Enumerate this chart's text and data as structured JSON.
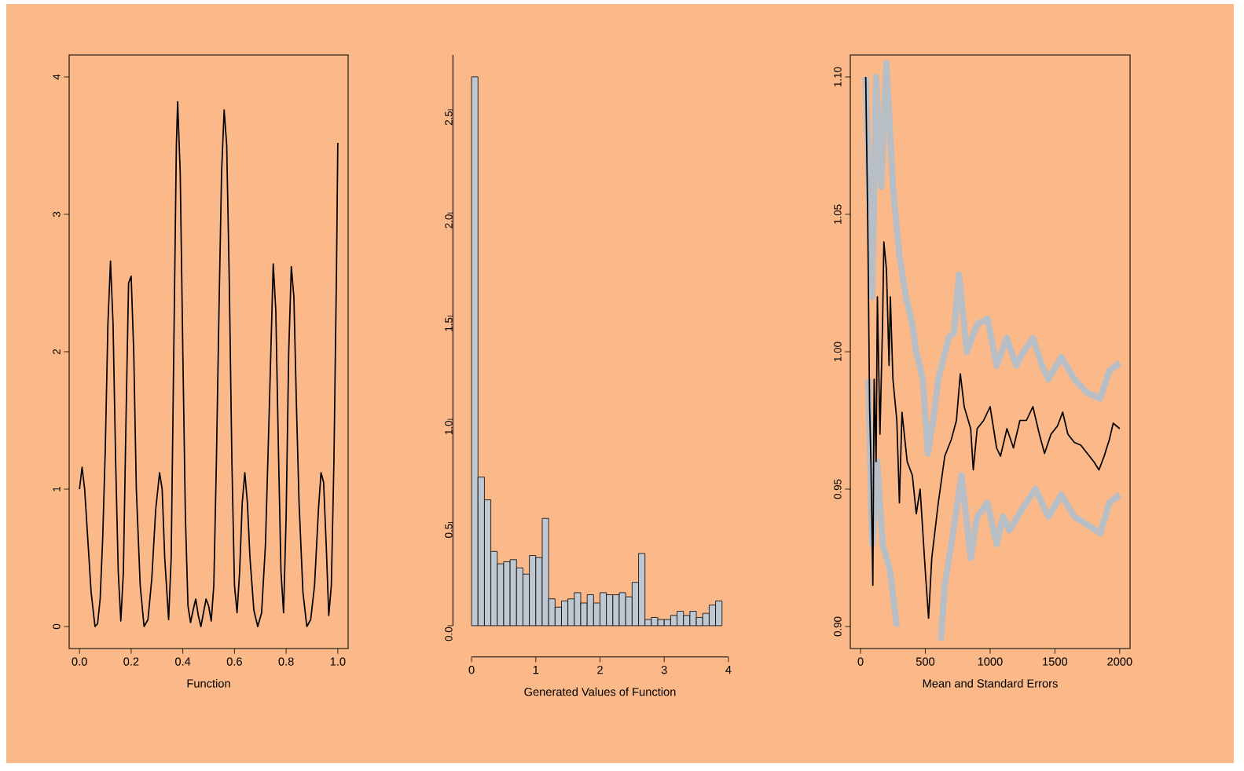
{
  "chart_data": [
    {
      "type": "line",
      "xlabel": "Function",
      "xlim": [
        -0.04,
        1.04
      ],
      "ylim": [
        -0.16,
        4.16
      ],
      "xticks": [
        {
          "value": 0,
          "label": "0.0"
        },
        {
          "value": 0.2,
          "label": "0.2"
        },
        {
          "value": 0.4,
          "label": "0.4"
        },
        {
          "value": 0.6,
          "label": "0.6"
        },
        {
          "value": 0.8,
          "label": "0.8"
        },
        {
          "value": 1,
          "label": "1.0"
        }
      ],
      "yticks": [
        0,
        1,
        2,
        3,
        4
      ],
      "series": [
        {
          "color": "#000000",
          "x": [
            0,
            0.01,
            0.02,
            0.03,
            0.045,
            0.06,
            0.07,
            0.08,
            0.09,
            0.1,
            0.11,
            0.12,
            0.13,
            0.14,
            0.15,
            0.16,
            0.17,
            0.18,
            0.19,
            0.2,
            0.21,
            0.22,
            0.235,
            0.25,
            0.265,
            0.28,
            0.295,
            0.31,
            0.32,
            0.33,
            0.345,
            0.355,
            0.365,
            0.375,
            0.38,
            0.39,
            0.4,
            0.41,
            0.42,
            0.43,
            0.44,
            0.45,
            0.46,
            0.47,
            0.48,
            0.49,
            0.5,
            0.51,
            0.52,
            0.53,
            0.54,
            0.55,
            0.56,
            0.57,
            0.58,
            0.59,
            0.6,
            0.61,
            0.62,
            0.63,
            0.64,
            0.65,
            0.66,
            0.675,
            0.69,
            0.705,
            0.72,
            0.735,
            0.75,
            0.76,
            0.77,
            0.78,
            0.79,
            0.8,
            0.81,
            0.82,
            0.83,
            0.84,
            0.85,
            0.865,
            0.88,
            0.895,
            0.91,
            0.925,
            0.935,
            0.945,
            0.955,
            0.965,
            0.975,
            0.985,
            0.995,
            1.0
          ],
          "values": [
            1.0,
            1.16,
            1.0,
            0.7,
            0.25,
            0.0,
            0.02,
            0.2,
            0.65,
            1.3,
            2.2,
            2.66,
            2.2,
            1.2,
            0.4,
            0.04,
            0.4,
            1.5,
            2.5,
            2.55,
            2.0,
            1.0,
            0.3,
            0.0,
            0.05,
            0.35,
            0.85,
            1.12,
            1.0,
            0.5,
            0.05,
            0.5,
            2.0,
            3.5,
            3.82,
            3.3,
            2.0,
            0.8,
            0.15,
            0.03,
            0.12,
            0.2,
            0.08,
            0.0,
            0.1,
            0.2,
            0.15,
            0.04,
            0.3,
            1.2,
            2.3,
            3.3,
            3.76,
            3.5,
            2.5,
            1.2,
            0.3,
            0.1,
            0.4,
            0.9,
            1.12,
            0.9,
            0.5,
            0.12,
            0.0,
            0.1,
            0.6,
            1.6,
            2.64,
            2.3,
            1.3,
            0.4,
            0.1,
            0.8,
            2.0,
            2.62,
            2.4,
            1.6,
            0.9,
            0.25,
            0.0,
            0.05,
            0.3,
            0.85,
            1.12,
            1.05,
            0.6,
            0.08,
            0.3,
            1.2,
            2.6,
            3.52
          ]
        }
      ]
    },
    {
      "type": "histogram",
      "xlabel": "Generated Values of Function",
      "xlim": [
        0,
        4
      ],
      "ylim": [
        0,
        2.766
      ],
      "color": "#bfc8d2",
      "xticks": [
        0,
        1,
        2,
        3,
        4
      ],
      "yticks": [
        {
          "value": 0,
          "label": "0.0"
        },
        {
          "value": 0.5,
          "label": "0.5"
        },
        {
          "value": 1,
          "label": "1.0"
        },
        {
          "value": 1.5,
          "label": "1.5"
        },
        {
          "value": 2,
          "label": "2.0"
        },
        {
          "value": 2.5,
          "label": "2.5"
        }
      ],
      "bins": [
        0,
        0.1,
        0.2,
        0.3,
        0.4,
        0.5,
        0.6,
        0.7,
        0.8,
        0.9,
        1.0,
        1.1,
        1.2,
        1.3,
        1.4,
        1.5,
        1.6,
        1.7,
        1.8,
        1.9,
        2.0,
        2.1,
        2.2,
        2.3,
        2.4,
        2.5,
        2.6,
        2.7,
        2.8,
        2.9,
        3.0,
        3.1,
        3.2,
        3.3,
        3.4,
        3.5,
        3.6,
        3.7,
        3.8,
        3.9
      ],
      "values": [
        2.66,
        0.72,
        0.61,
        0.36,
        0.3,
        0.31,
        0.32,
        0.28,
        0.25,
        0.34,
        0.33,
        0.52,
        0.13,
        0.09,
        0.12,
        0.13,
        0.16,
        0.11,
        0.15,
        0.11,
        0.16,
        0.15,
        0.15,
        0.16,
        0.14,
        0.21,
        0.35,
        0.03,
        0.04,
        0.03,
        0.03,
        0.05,
        0.07,
        0.05,
        0.07,
        0.04,
        0.06,
        0.1,
        0.12
      ]
    },
    {
      "type": "line",
      "xlabel": "Mean and Standard Errors",
      "xlim": [
        -79,
        2080
      ],
      "ylim": [
        0.892,
        1.108
      ],
      "xticks": [
        0,
        500,
        1000,
        1500,
        2000
      ],
      "yticks": [
        {
          "value": 0.9,
          "label": "0.90"
        },
        {
          "value": 0.95,
          "label": "0.95"
        },
        {
          "value": 1.0,
          "label": "1.00"
        },
        {
          "value": 1.05,
          "label": "1.05"
        },
        {
          "value": 1.1,
          "label": "1.10"
        }
      ],
      "series": [
        {
          "color": "#b8bec6",
          "x": [
            40,
            90,
            120,
            160,
            200,
            250,
            300,
            350,
            400,
            430,
            480,
            520,
            560,
            600,
            680,
            720,
            760,
            820,
            900,
            980,
            1050,
            1130,
            1200,
            1260,
            1330,
            1400,
            1450,
            1550,
            1650,
            1750,
            1850,
            1920,
            2000
          ],
          "values": [
            1.1,
            1.02,
            1.1,
            1.06,
            1.105,
            1.06,
            1.035,
            1.02,
            1.01,
            1.0,
            0.99,
            0.963,
            0.975,
            0.99,
            1.005,
            1.007,
            1.028,
            1.0,
            1.01,
            1.012,
            0.995,
            1.005,
            0.995,
            1.0,
            1.005,
            0.995,
            0.99,
            0.998,
            0.99,
            0.985,
            0.983,
            0.993,
            0.996
          ]
        },
        {
          "color": "#b8bec6",
          "x": [
            60,
            90,
            130,
            170,
            230,
            280,
            400,
            620,
            650,
            700,
            780,
            850,
            900,
            980,
            1050,
            1100,
            1150,
            1250,
            1350,
            1450,
            1550,
            1650,
            1750,
            1850,
            1920,
            2000
          ],
          "values": [
            0.99,
            0.93,
            0.96,
            0.93,
            0.92,
            0.9,
            null,
            0.895,
            0.915,
            0.93,
            0.955,
            0.925,
            0.94,
            0.945,
            0.93,
            0.94,
            0.935,
            0.943,
            0.95,
            0.94,
            0.948,
            0.94,
            0.937,
            0.934,
            0.945,
            0.948
          ]
        },
        {
          "color": "#000000",
          "x": [
            40,
            55,
            70,
            80,
            95,
            105,
            120,
            130,
            150,
            170,
            180,
            200,
            220,
            230,
            250,
            280,
            300,
            320,
            360,
            400,
            430,
            460,
            500,
            525,
            550,
            600,
            650,
            700,
            740,
            770,
            800,
            850,
            870,
            900,
            950,
            1000,
            1050,
            1080,
            1130,
            1180,
            1230,
            1280,
            1330,
            1380,
            1420,
            1470,
            1520,
            1560,
            1600,
            1650,
            1700,
            1750,
            1800,
            1840,
            1880,
            1920,
            1950,
            2000
          ],
          "values": [
            1.1,
            1.05,
            0.98,
            0.96,
            0.915,
            0.99,
            0.96,
            1.02,
            0.97,
            1.01,
            1.04,
            1.03,
            0.995,
            1.02,
            0.99,
            0.975,
            0.945,
            0.978,
            0.96,
            0.955,
            0.941,
            0.95,
            0.92,
            0.903,
            0.925,
            0.945,
            0.962,
            0.968,
            0.975,
            0.992,
            0.98,
            0.972,
            0.957,
            0.972,
            0.975,
            0.98,
            0.965,
            0.962,
            0.972,
            0.965,
            0.975,
            0.975,
            0.98,
            0.97,
            0.963,
            0.97,
            0.973,
            0.978,
            0.97,
            0.967,
            0.966,
            0.963,
            0.96,
            0.957,
            0.962,
            0.968,
            0.974,
            0.972
          ]
        }
      ]
    }
  ]
}
